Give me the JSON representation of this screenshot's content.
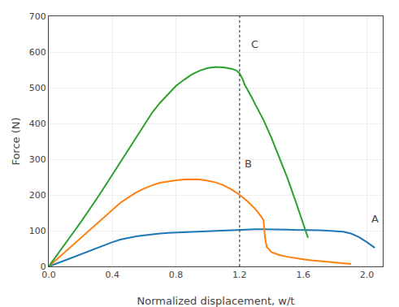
{
  "chart_data": {
    "type": "line",
    "xlabel": "Normalized displacement, w/t",
    "ylabel": "Force (N)",
    "xlim": [
      0.0,
      2.1
    ],
    "ylim": [
      0,
      700
    ],
    "xticks": [
      {
        "value": 0.0,
        "label": "0.0"
      },
      0.4,
      0.8,
      1.2,
      1.6,
      {
        "value": 2.0,
        "label": "2.0"
      }
    ],
    "yticks": [
      0,
      100,
      200,
      300,
      400,
      500,
      600,
      700
    ],
    "grid": true,
    "series": [
      {
        "x": [
          0.0,
          0.04,
          0.08,
          0.12,
          0.16,
          0.2,
          0.25,
          0.3,
          0.35,
          0.4,
          0.45,
          0.5,
          0.55,
          0.6,
          0.65,
          0.7,
          0.75,
          0.8,
          0.85,
          0.9,
          0.95,
          1.0,
          1.05,
          1.1,
          1.15,
          1.2,
          1.25,
          1.3,
          1.35,
          1.37,
          1.4,
          1.45,
          1.5,
          1.55,
          1.6,
          1.65,
          1.7,
          1.75,
          1.8,
          1.85,
          1.9,
          1.95,
          2.0,
          2.05
        ],
        "values": [
          0,
          6,
          13,
          20,
          27,
          34,
          42,
          52,
          61,
          68,
          75,
          80,
          84,
          87,
          90,
          92,
          94,
          95,
          96,
          97,
          98,
          99,
          100,
          101,
          102,
          103,
          104,
          104,
          104,
          104,
          104,
          103,
          103,
          102,
          102,
          101,
          101,
          100,
          99,
          97,
          92,
          82,
          68,
          52
        ]
      },
      {
        "x": [
          0.0,
          0.05,
          0.1,
          0.15,
          0.2,
          0.25,
          0.3,
          0.35,
          0.4,
          0.45,
          0.5,
          0.55,
          0.6,
          0.65,
          0.7,
          0.75,
          0.8,
          0.85,
          0.9,
          0.92,
          0.95,
          1.0,
          1.05,
          1.1,
          1.15,
          1.2,
          1.25,
          1.3,
          1.33,
          1.35,
          1.36,
          1.37,
          1.4,
          1.45,
          1.5,
          1.55,
          1.6,
          1.65,
          1.7,
          1.75,
          1.8,
          1.85,
          1.9
        ],
        "values": [
          0,
          20,
          40,
          60,
          80,
          100,
          120,
          140,
          160,
          178,
          193,
          207,
          218,
          227,
          234,
          238,
          241,
          243,
          244,
          244,
          243,
          240,
          235,
          227,
          215,
          200,
          182,
          160,
          143,
          130,
          80,
          55,
          40,
          32,
          27,
          23,
          20,
          17,
          15,
          13,
          11,
          9,
          7
        ]
      },
      {
        "x": [
          0.0,
          0.05,
          0.1,
          0.15,
          0.2,
          0.25,
          0.3,
          0.35,
          0.4,
          0.45,
          0.5,
          0.55,
          0.6,
          0.65,
          0.7,
          0.75,
          0.8,
          0.85,
          0.9,
          0.95,
          1.0,
          1.05,
          1.1,
          1.15,
          1.18,
          1.2,
          1.21,
          1.22,
          1.23,
          1.25,
          1.28,
          1.3,
          1.35,
          1.4,
          1.45,
          1.5,
          1.55,
          1.6,
          1.63
        ],
        "values": [
          0,
          30,
          60,
          92,
          123,
          155,
          188,
          222,
          257,
          292,
          328,
          363,
          398,
          430,
          458,
          482,
          505,
          522,
          537,
          548,
          555,
          558,
          557,
          553,
          548,
          540,
          533,
          523,
          510,
          495,
          470,
          452,
          410,
          360,
          305,
          248,
          185,
          120,
          80
        ]
      }
    ],
    "annotations": [
      {
        "text": "A",
        "x": 2.02,
        "y": 112
      },
      {
        "text": "B",
        "x": 1.22,
        "y": 265
      },
      {
        "text": "C",
        "x": 1.26,
        "y": 600
      }
    ],
    "vline": {
      "x": 1.2,
      "line_style": "dotted"
    }
  }
}
